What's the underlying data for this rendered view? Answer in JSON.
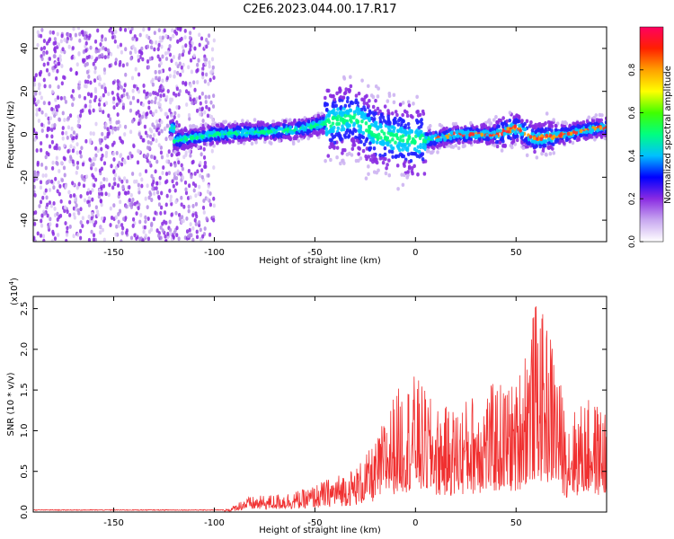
{
  "title": "C2E6.2023.044.00.17.R17",
  "chart_data": [
    {
      "type": "heatmap",
      "xlabel": "Height of straight line (km)",
      "ylabel": "Frequency (Hz)",
      "xlim": [
        -190,
        95
      ],
      "ylim": [
        -50,
        50
      ],
      "xticks": [
        -150,
        -100,
        -50,
        0,
        50
      ],
      "yticks": [
        -40,
        -20,
        0,
        20,
        40
      ],
      "colorbar": {
        "label": "Normalized spectral amplitude",
        "range": [
          0.0,
          1.0
        ],
        "ticks": [
          0.0,
          0.2,
          0.4,
          0.6,
          0.8
        ],
        "colors": [
          "#ffffff",
          "#c8a8f0",
          "#8a2be2",
          "#0000ff",
          "#00c0ff",
          "#00ff80",
          "#40ff00",
          "#ffff00",
          "#ffa000",
          "#ff2000",
          "#ff0060"
        ]
      },
      "description_points": {
        "noise_region_x": [
          -190,
          -100
        ],
        "line_center": [
          {
            "x": -120,
            "y": -3
          },
          {
            "x": -100,
            "y": 0
          },
          {
            "x": -80,
            "y": 1
          },
          {
            "x": -60,
            "y": 2
          },
          {
            "x": -40,
            "y": 6
          },
          {
            "x": -30,
            "y": 8
          },
          {
            "x": -20,
            "y": 0
          },
          {
            "x": -10,
            "y": -2
          },
          {
            "x": 0,
            "y": -3
          },
          {
            "x": 10,
            "y": -2
          },
          {
            "x": 20,
            "y": 0
          },
          {
            "x": 40,
            "y": 0
          },
          {
            "x": 50,
            "y": 3
          },
          {
            "x": 60,
            "y": -2
          },
          {
            "x": 75,
            "y": 0
          },
          {
            "x": 90,
            "y": 3
          }
        ]
      }
    },
    {
      "type": "line",
      "xlabel": "Height of straight line (km)",
      "ylabel": "SNR (10 * v/v)",
      "scale_label": "(x10",
      "scale_exp": "4",
      "scale_close": ")",
      "xlim": [
        -190,
        95
      ],
      "ylim": [
        0.0,
        2.65
      ],
      "xticks": [
        -150,
        -100,
        -50,
        0,
        50
      ],
      "yticks": [
        "0.0",
        "0.5",
        "1.0",
        "1.5",
        "2.0",
        "2.5"
      ],
      "color": "#f03030",
      "envelope": [
        {
          "x": -190,
          "y": 0.02
        },
        {
          "x": -100,
          "y": 0.03
        },
        {
          "x": -92,
          "y": 0.05
        },
        {
          "x": -85,
          "y": 0.18
        },
        {
          "x": -70,
          "y": 0.22
        },
        {
          "x": -55,
          "y": 0.28
        },
        {
          "x": -40,
          "y": 0.45
        },
        {
          "x": -30,
          "y": 0.55
        },
        {
          "x": -20,
          "y": 0.85
        },
        {
          "x": -15,
          "y": 1.2
        },
        {
          "x": -10,
          "y": 1.5
        },
        {
          "x": 0,
          "y": 1.7
        },
        {
          "x": 10,
          "y": 1.3
        },
        {
          "x": 20,
          "y": 1.3
        },
        {
          "x": 30,
          "y": 1.5
        },
        {
          "x": 40,
          "y": 1.6
        },
        {
          "x": 50,
          "y": 1.6
        },
        {
          "x": 55,
          "y": 2.2
        },
        {
          "x": 60,
          "y": 2.6
        },
        {
          "x": 68,
          "y": 2.2
        },
        {
          "x": 75,
          "y": 1.2
        },
        {
          "x": 85,
          "y": 1.4
        },
        {
          "x": 95,
          "y": 1.3
        }
      ]
    }
  ]
}
